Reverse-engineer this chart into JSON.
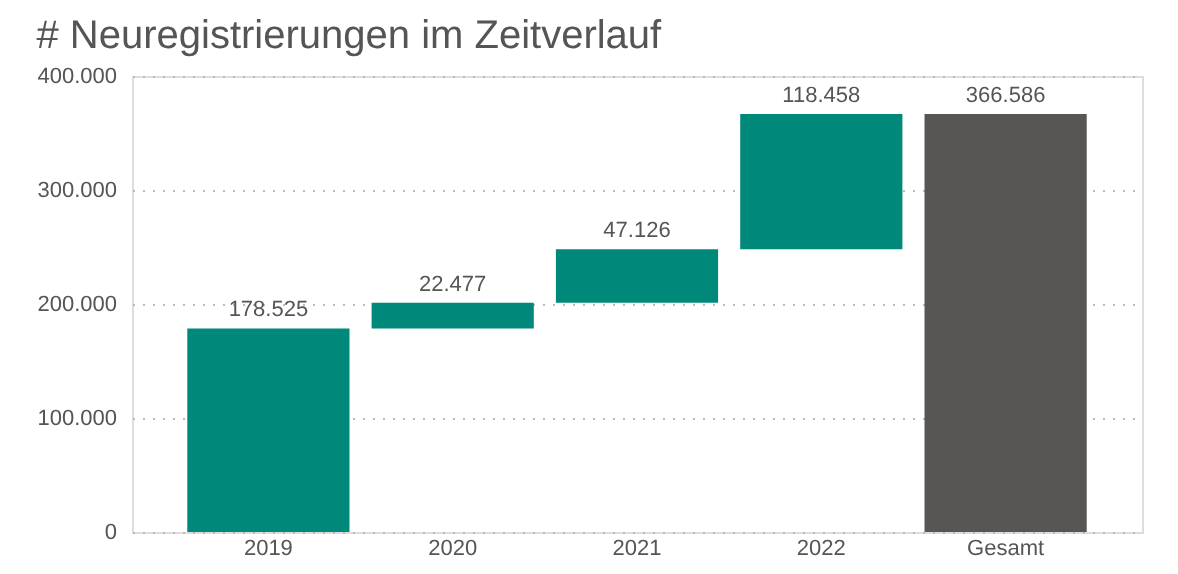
{
  "chart_data": {
    "type": "bar",
    "title": "# Neuregistrierungen im Zeitverlauf",
    "categories": [
      "2019",
      "2020",
      "2021",
      "2022",
      "Gesamt"
    ],
    "values": [
      178525,
      22477,
      47126,
      118458,
      366586
    ],
    "base": [
      0,
      178525,
      201002,
      248128,
      0
    ],
    "colors": [
      "#00897b",
      "#00897b",
      "#00897b",
      "#00897b",
      "#575655"
    ],
    "value_labels": [
      "178.525",
      "22.477",
      "47.126",
      "118.458",
      "366.586"
    ],
    "ylim": [
      0,
      400000
    ],
    "yticks": [
      0,
      {
        "value": 100000,
        "label": "100.000"
      },
      {
        "value": 200000,
        "label": "200.000"
      },
      {
        "value": 300000,
        "label": "300.000"
      },
      {
        "value": 400000,
        "label": "400.000"
      }
    ],
    "grid": "y"
  }
}
